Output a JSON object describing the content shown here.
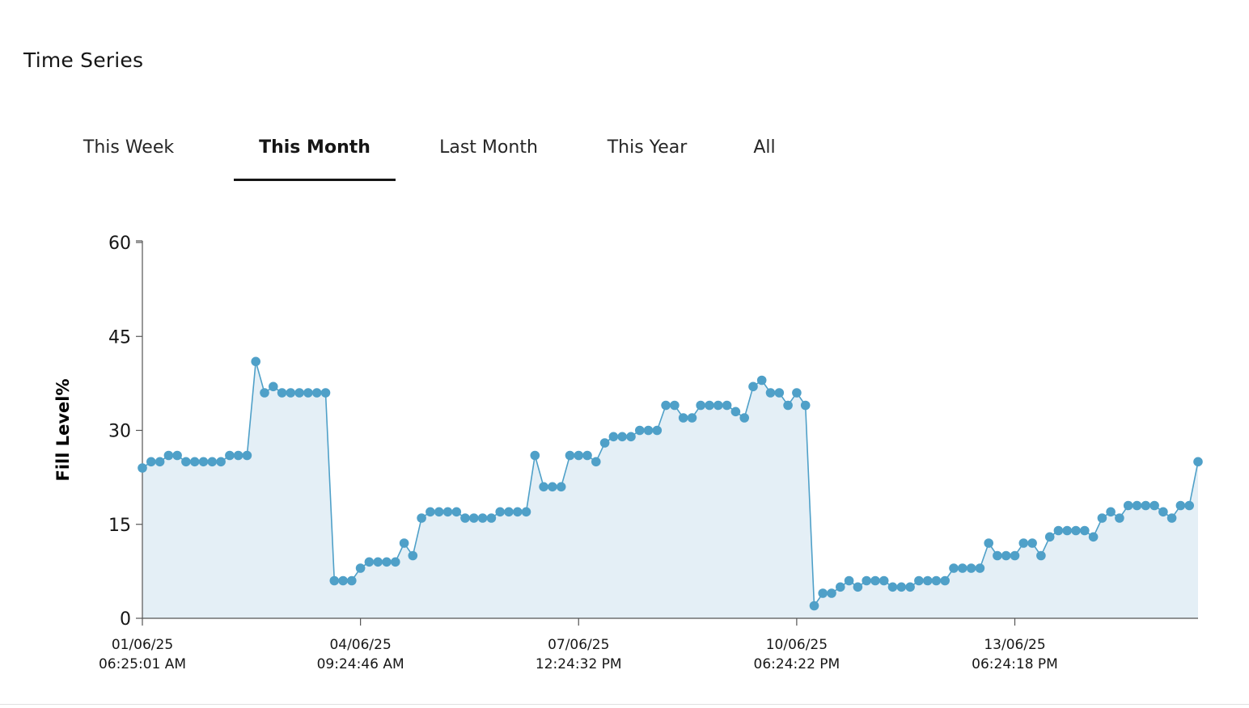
{
  "header": {
    "title": "Time Series"
  },
  "tabs": [
    {
      "label": "This Week",
      "active": false
    },
    {
      "label": "This Month",
      "active": true
    },
    {
      "label": "Last Month",
      "active": false
    },
    {
      "label": "This Year",
      "active": false
    },
    {
      "label": "All",
      "active": false
    }
  ],
  "chart_data": {
    "type": "area",
    "ylabel": "Fill Level%",
    "xlabel": "",
    "ylim": [
      0,
      60
    ],
    "yticks": [
      0,
      15,
      30,
      45,
      60
    ],
    "xticks": [
      {
        "date": "01/06/25",
        "time": "06:25:01 AM"
      },
      {
        "date": "04/06/25",
        "time": "09:24:46 AM"
      },
      {
        "date": "07/06/25",
        "time": "12:24:32 PM"
      },
      {
        "date": "10/06/25",
        "time": "06:24:22 PM"
      },
      {
        "date": "13/06/25",
        "time": "06:24:18 PM"
      }
    ],
    "grid": false,
    "markers": true,
    "colors": {
      "line": "#4fa0c8",
      "fill": "#e4eff6",
      "axis": "#555555"
    },
    "values": [
      24,
      25,
      25,
      26,
      26,
      25,
      25,
      25,
      25,
      25,
      26,
      26,
      26,
      41,
      36,
      37,
      36,
      36,
      36,
      36,
      36,
      36,
      6,
      6,
      6,
      8,
      9,
      9,
      9,
      9,
      12,
      10,
      16,
      17,
      17,
      17,
      17,
      16,
      16,
      16,
      16,
      17,
      17,
      17,
      17,
      26,
      21,
      21,
      21,
      26,
      26,
      26,
      25,
      28,
      29,
      29,
      29,
      30,
      30,
      30,
      34,
      34,
      32,
      32,
      34,
      34,
      34,
      34,
      33,
      32,
      37,
      38,
      36,
      36,
      34,
      36,
      34,
      2,
      4,
      4,
      5,
      6,
      5,
      6,
      6,
      6,
      5,
      5,
      5,
      6,
      6,
      6,
      6,
      8,
      8,
      8,
      8,
      12,
      10,
      10,
      10,
      12,
      12,
      10,
      13,
      14,
      14,
      14,
      14,
      13,
      16,
      17,
      16,
      18,
      18,
      18,
      18,
      17,
      16,
      18,
      18,
      25
    ]
  }
}
